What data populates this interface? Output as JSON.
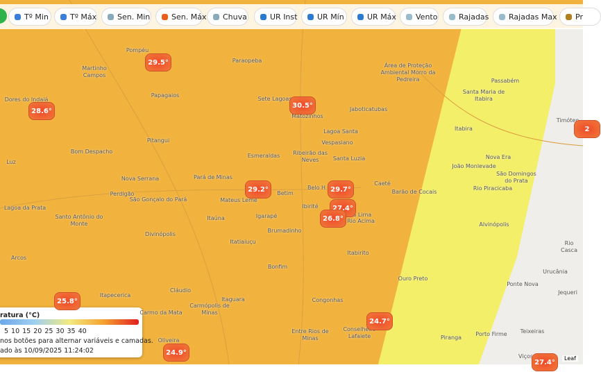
{
  "toolbar": {
    "buttons": [
      "Tº Min",
      "Tº Máx",
      "Sen. Min",
      "Sen. Máx",
      "Chuva",
      "UR Inst",
      "UR Mín",
      "UR Máx",
      "Vento",
      "Rajadas",
      "Rajadas Max",
      "Pr"
    ]
  },
  "places": [
    "Pompéu",
    "Martinho Campos",
    "Paraopeba",
    "Dores do Indaiá",
    "Papagaios",
    "Sete Lagoas",
    "Matozinhos",
    "Jaboticatubas",
    "Lagoa Santa",
    "Vespasiano",
    "Pitangui",
    "Bom Despacho",
    "Esmeraldas",
    "Ribeirão das Neves",
    "Santa Luzia",
    "Luz",
    "Nova Serrana",
    "Pará de Minas",
    "Perdigão",
    "São Gonçalo do Pará",
    "Mateus Leme",
    "Betim",
    "Belo H",
    "Caeté",
    "Barão de Cocais",
    "Ibirité",
    "Igarapé",
    "Nova Lima",
    "Rio Acima",
    "Lagoa da Prata",
    "Santo Antônio do Monte",
    "Divinópolis",
    "Itaúna",
    "Brumadinho",
    "Itatiaiuçu",
    "Arcos",
    "Bonfim",
    "Itabirito",
    "Ouro Preto",
    "Itapecerica",
    "Cláudio",
    "Itaguara",
    "Carmo da Mata",
    "Carmópolis de Minas",
    "Congonhas",
    "Entre Rios de Minas",
    "Conselheiro Lafaiete",
    "Oliveira",
    "Piranga",
    "Porto Firme",
    "Teixeiras",
    "Viçosa",
    "Ponte Nova",
    "Urucânia",
    "Jequeri",
    "Rio Casca",
    "Alvinópolis",
    "Rio Piracicaba",
    "São Domingos do Prata",
    "Nova Era",
    "João Monlevade",
    "Itabira",
    "Santa Maria de Itabira",
    "Passabém",
    "Timóteo",
    "Área de Proteção Ambiental Morro da Pedreira"
  ],
  "markers": [
    "29.5°",
    "30.5°",
    "28.6°",
    "29.2°",
    "29.7°",
    "27.4°",
    "26.8°",
    "25.8°",
    "24.7°",
    "24.9°",
    "27.4°",
    "2"
  ],
  "legend": {
    "title": "ratura (°C)",
    "scale": [
      "5",
      "10",
      "15",
      "20",
      "25",
      "30",
      "35",
      "40"
    ],
    "hint": "nos botões para alternar variáveis e camadas.",
    "updated": "ado às 10/09/2025 11:24:02"
  },
  "attribution": "Leaf"
}
